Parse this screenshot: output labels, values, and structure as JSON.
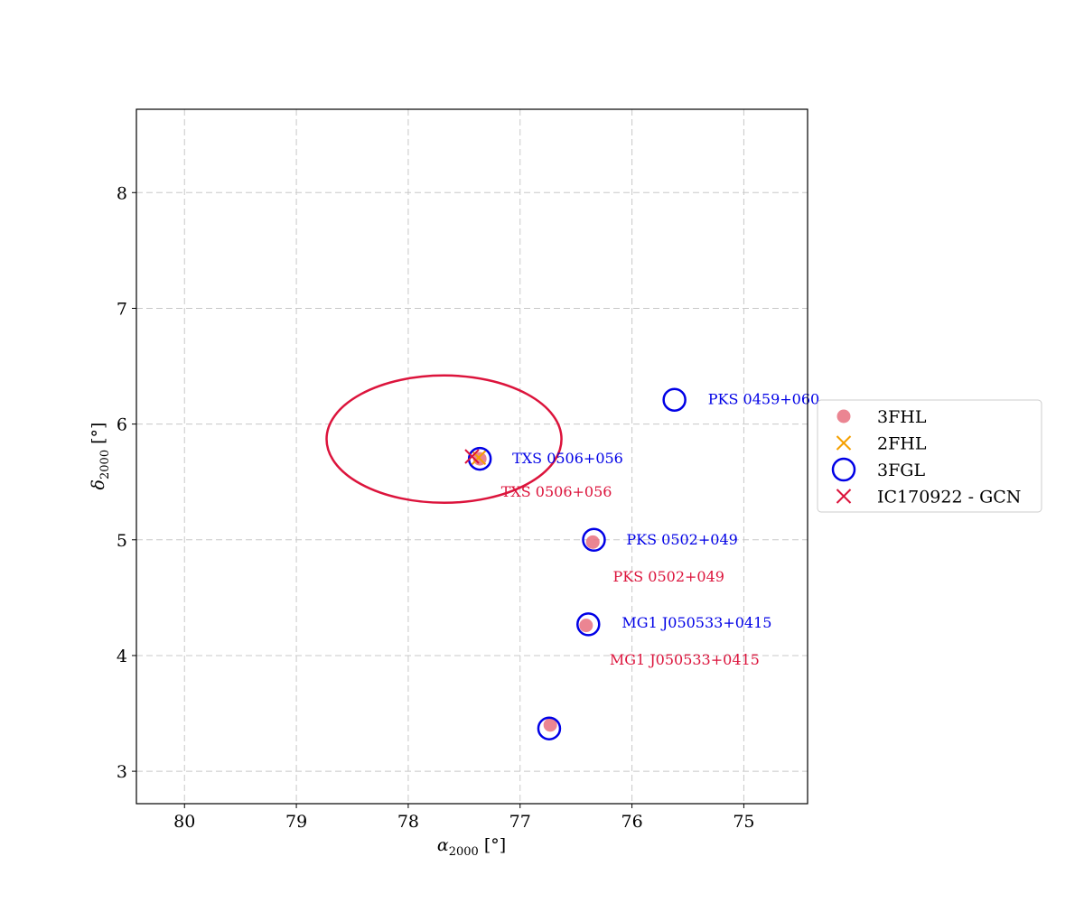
{
  "chart_data": {
    "type": "scatter",
    "xlabel": "α₂₀₀₀ [°]",
    "ylabel": "δ₂₀₀₀ [°]",
    "xlim": [
      80.43,
      74.43
    ],
    "ylim": [
      2.72,
      8.72
    ],
    "x_inverted": true,
    "xticks": [
      80,
      79,
      78,
      77,
      76,
      75
    ],
    "yticks": [
      3,
      4,
      5,
      6,
      7,
      8
    ],
    "grid": true,
    "legend_position": "right, outside plot",
    "series": [
      {
        "name": "3FHL",
        "marker": "filled circle",
        "color": "#e8707f",
        "points": [
          {
            "x": 77.36,
            "y": 5.7
          },
          {
            "x": 76.35,
            "y": 4.98
          },
          {
            "x": 76.41,
            "y": 4.26
          },
          {
            "x": 76.73,
            "y": 3.4
          }
        ]
      },
      {
        "name": "2FHL",
        "marker": "x",
        "color": "#f5a000",
        "points": [
          {
            "x": 77.37,
            "y": 5.71
          }
        ]
      },
      {
        "name": "3FGL",
        "marker": "open circle",
        "color": "#0000e6",
        "points": [
          {
            "x": 77.36,
            "y": 5.7
          },
          {
            "x": 75.62,
            "y": 6.21
          },
          {
            "x": 76.34,
            "y": 5.0
          },
          {
            "x": 76.39,
            "y": 4.27
          },
          {
            "x": 76.74,
            "y": 3.37
          }
        ]
      },
      {
        "name": "IC170922 - GCN",
        "marker": "x",
        "color": "#dc143c",
        "points": [
          {
            "x": 77.43,
            "y": 5.72
          }
        ]
      }
    ],
    "error_ellipse": {
      "color": "#dc143c",
      "center": {
        "x": 77.68,
        "y": 5.87
      },
      "semi_axis_x": 1.05,
      "semi_axis_y": 0.55
    },
    "annotations": [
      {
        "text": "PKS 0459+060",
        "x": 75.32,
        "y": 6.21,
        "color": "#0000e6"
      },
      {
        "text": "TXS 0506+056",
        "x": 77.07,
        "y": 5.7,
        "color": "#0000e6"
      },
      {
        "text": "TXS 0506+056",
        "x": 77.17,
        "y": 5.41,
        "color": "#dc143c"
      },
      {
        "text": "PKS 0502+049",
        "x": 76.05,
        "y": 5.0,
        "color": "#0000e6"
      },
      {
        "text": "PKS 0502+049",
        "x": 76.17,
        "y": 4.68,
        "color": "#dc143c"
      },
      {
        "text": "MG1 J050533+0415",
        "x": 76.09,
        "y": 4.28,
        "color": "#0000e6"
      },
      {
        "text": "MG1 J050533+0415",
        "x": 76.2,
        "y": 3.96,
        "color": "#dc143c"
      }
    ]
  }
}
